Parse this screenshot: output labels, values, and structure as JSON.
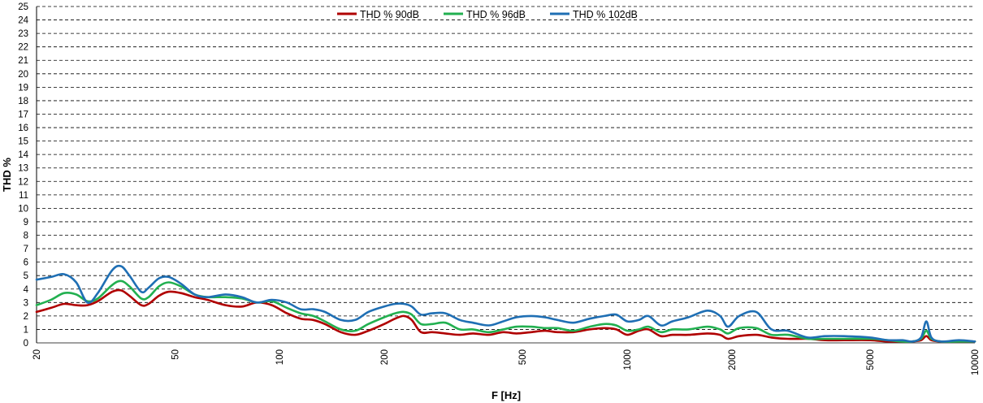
{
  "chart_data": {
    "type": "line",
    "xlabel": "F [Hz]",
    "ylabel": "THD %",
    "xscale": "log",
    "xlim": [
      20,
      10000
    ],
    "ylim": [
      0,
      25
    ],
    "ytick_step": 1,
    "xticks": [
      20,
      50,
      100,
      200,
      500,
      1000,
      2000,
      5000,
      10000
    ],
    "xtick_labels": [
      "20",
      "50",
      "100",
      "200",
      "500",
      "1000",
      "2000",
      "5000",
      "10000"
    ],
    "grid": "horizontal dashed",
    "legend_position": "top-center",
    "series": [
      {
        "name": "THD % 90dB",
        "color": "#b00000",
        "points": [
          [
            20,
            2.3
          ],
          [
            22,
            2.6
          ],
          [
            24,
            2.9
          ],
          [
            26,
            2.8
          ],
          [
            28,
            2.8
          ],
          [
            30,
            3.1
          ],
          [
            33,
            3.8
          ],
          [
            35,
            3.9
          ],
          [
            37,
            3.5
          ],
          [
            40,
            2.8
          ],
          [
            42,
            2.9
          ],
          [
            45,
            3.5
          ],
          [
            48,
            3.8
          ],
          [
            52,
            3.7
          ],
          [
            57,
            3.4
          ],
          [
            62,
            3.2
          ],
          [
            70,
            2.8
          ],
          [
            78,
            2.7
          ],
          [
            86,
            3.0
          ],
          [
            95,
            2.8
          ],
          [
            105,
            2.2
          ],
          [
            115,
            1.8
          ],
          [
            125,
            1.7
          ],
          [
            135,
            1.4
          ],
          [
            150,
            0.8
          ],
          [
            165,
            0.6
          ],
          [
            180,
            0.9
          ],
          [
            200,
            1.4
          ],
          [
            215,
            1.8
          ],
          [
            228,
            2.0
          ],
          [
            240,
            1.7
          ],
          [
            255,
            0.8
          ],
          [
            275,
            0.8
          ],
          [
            300,
            0.7
          ],
          [
            330,
            0.6
          ],
          [
            360,
            0.7
          ],
          [
            400,
            0.6
          ],
          [
            440,
            0.8
          ],
          [
            480,
            0.7
          ],
          [
            530,
            0.8
          ],
          [
            580,
            0.9
          ],
          [
            630,
            0.8
          ],
          [
            700,
            0.8
          ],
          [
            780,
            1.0
          ],
          [
            860,
            1.1
          ],
          [
            930,
            1.0
          ],
          [
            1000,
            0.6
          ],
          [
            1080,
            0.9
          ],
          [
            1150,
            1.0
          ],
          [
            1250,
            0.5
          ],
          [
            1350,
            0.6
          ],
          [
            1500,
            0.6
          ],
          [
            1700,
            0.7
          ],
          [
            1850,
            0.6
          ],
          [
            1950,
            0.3
          ],
          [
            2100,
            0.5
          ],
          [
            2350,
            0.6
          ],
          [
            2600,
            0.4
          ],
          [
            2900,
            0.3
          ],
          [
            3300,
            0.3
          ],
          [
            3700,
            0.2
          ],
          [
            4200,
            0.2
          ],
          [
            5000,
            0.2
          ],
          [
            5600,
            0.1
          ],
          [
            6200,
            0.1
          ],
          [
            6600,
            0.1
          ],
          [
            7000,
            0.2
          ],
          [
            7250,
            0.5
          ],
          [
            7500,
            0.2
          ],
          [
            8000,
            0.1
          ],
          [
            9000,
            0.1
          ],
          [
            10000,
            0.1
          ]
        ]
      },
      {
        "name": "THD % 96dB",
        "color": "#22b050",
        "points": [
          [
            20,
            2.8
          ],
          [
            22,
            3.2
          ],
          [
            24,
            3.7
          ],
          [
            26,
            3.6
          ],
          [
            28,
            3.1
          ],
          [
            30,
            3.3
          ],
          [
            33,
            4.3
          ],
          [
            35,
            4.6
          ],
          [
            37,
            4.2
          ],
          [
            40,
            3.3
          ],
          [
            42,
            3.4
          ],
          [
            45,
            4.2
          ],
          [
            48,
            4.5
          ],
          [
            52,
            4.2
          ],
          [
            57,
            3.6
          ],
          [
            62,
            3.4
          ],
          [
            70,
            3.4
          ],
          [
            78,
            3.3
          ],
          [
            86,
            3.0
          ],
          [
            95,
            3.1
          ],
          [
            105,
            2.6
          ],
          [
            115,
            2.2
          ],
          [
            125,
            2.0
          ],
          [
            135,
            1.6
          ],
          [
            150,
            1.0
          ],
          [
            165,
            0.9
          ],
          [
            180,
            1.4
          ],
          [
            200,
            1.9
          ],
          [
            215,
            2.2
          ],
          [
            228,
            2.3
          ],
          [
            240,
            2.1
          ],
          [
            255,
            1.4
          ],
          [
            275,
            1.4
          ],
          [
            300,
            1.5
          ],
          [
            330,
            1.0
          ],
          [
            360,
            1.0
          ],
          [
            400,
            0.8
          ],
          [
            440,
            1.0
          ],
          [
            480,
            1.2
          ],
          [
            530,
            1.2
          ],
          [
            580,
            1.1
          ],
          [
            630,
            1.1
          ],
          [
            700,
            0.9
          ],
          [
            780,
            1.2
          ],
          [
            860,
            1.4
          ],
          [
            930,
            1.3
          ],
          [
            1000,
            0.9
          ],
          [
            1080,
            1.0
          ],
          [
            1150,
            1.2
          ],
          [
            1250,
            0.8
          ],
          [
            1350,
            1.0
          ],
          [
            1500,
            1.0
          ],
          [
            1700,
            1.2
          ],
          [
            1850,
            1.0
          ],
          [
            1950,
            0.7
          ],
          [
            2100,
            1.1
          ],
          [
            2350,
            1.1
          ],
          [
            2600,
            0.6
          ],
          [
            2900,
            0.6
          ],
          [
            3300,
            0.3
          ],
          [
            3700,
            0.3
          ],
          [
            4200,
            0.3
          ],
          [
            5000,
            0.3
          ],
          [
            5600,
            0.2
          ],
          [
            6200,
            0.1
          ],
          [
            6600,
            0.1
          ],
          [
            7000,
            0.3
          ],
          [
            7250,
            0.9
          ],
          [
            7500,
            0.3
          ],
          [
            8000,
            0.1
          ],
          [
            9000,
            0.1
          ],
          [
            10000,
            0.1
          ]
        ]
      },
      {
        "name": "THD % 102dB",
        "color": "#1f6fb4",
        "points": [
          [
            20,
            4.7
          ],
          [
            22,
            4.9
          ],
          [
            24,
            5.1
          ],
          [
            26,
            4.5
          ],
          [
            28,
            3.0
          ],
          [
            30,
            3.7
          ],
          [
            33,
            5.4
          ],
          [
            35,
            5.7
          ],
          [
            37,
            5.0
          ],
          [
            40,
            3.8
          ],
          [
            42,
            4.1
          ],
          [
            45,
            4.8
          ],
          [
            48,
            4.9
          ],
          [
            52,
            4.4
          ],
          [
            57,
            3.6
          ],
          [
            62,
            3.4
          ],
          [
            70,
            3.6
          ],
          [
            78,
            3.4
          ],
          [
            86,
            3.0
          ],
          [
            95,
            3.2
          ],
          [
            105,
            3.0
          ],
          [
            115,
            2.5
          ],
          [
            125,
            2.5
          ],
          [
            135,
            2.3
          ],
          [
            150,
            1.7
          ],
          [
            165,
            1.7
          ],
          [
            180,
            2.3
          ],
          [
            200,
            2.7
          ],
          [
            215,
            2.9
          ],
          [
            228,
            2.9
          ],
          [
            240,
            2.7
          ],
          [
            255,
            2.1
          ],
          [
            275,
            2.2
          ],
          [
            300,
            2.2
          ],
          [
            330,
            1.7
          ],
          [
            360,
            1.5
          ],
          [
            400,
            1.3
          ],
          [
            440,
            1.6
          ],
          [
            480,
            1.9
          ],
          [
            530,
            2.0
          ],
          [
            580,
            1.9
          ],
          [
            630,
            1.7
          ],
          [
            700,
            1.5
          ],
          [
            780,
            1.8
          ],
          [
            860,
            2.0
          ],
          [
            930,
            2.1
          ],
          [
            1000,
            1.6
          ],
          [
            1080,
            1.7
          ],
          [
            1150,
            2.0
          ],
          [
            1250,
            1.3
          ],
          [
            1350,
            1.6
          ],
          [
            1500,
            1.9
          ],
          [
            1700,
            2.4
          ],
          [
            1850,
            2.0
          ],
          [
            1950,
            1.2
          ],
          [
            2100,
            2.0
          ],
          [
            2350,
            2.3
          ],
          [
            2600,
            1.0
          ],
          [
            2900,
            0.9
          ],
          [
            3300,
            0.4
          ],
          [
            3700,
            0.5
          ],
          [
            4200,
            0.5
          ],
          [
            5000,
            0.4
          ],
          [
            5600,
            0.2
          ],
          [
            6200,
            0.2
          ],
          [
            6600,
            0.1
          ],
          [
            7000,
            0.4
          ],
          [
            7250,
            1.6
          ],
          [
            7500,
            0.4
          ],
          [
            8000,
            0.1
          ],
          [
            9000,
            0.2
          ],
          [
            10000,
            0.1
          ]
        ]
      }
    ]
  }
}
